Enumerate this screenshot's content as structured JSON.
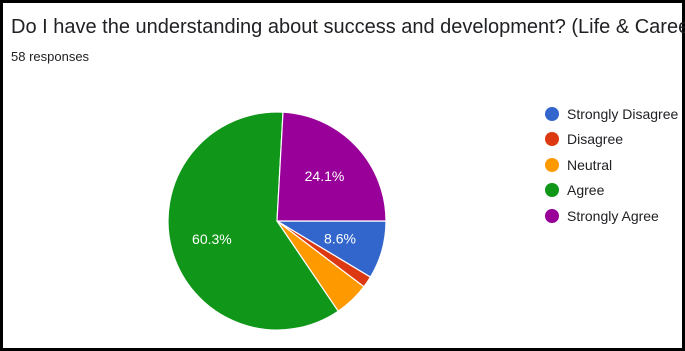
{
  "title": "Do I have the understanding about success and development? (Life & Career)",
  "responses": "58 responses",
  "chart_data": {
    "type": "pie",
    "title": "Do I have the understanding about success and development? (Life & Career)",
    "legend_position": "right",
    "start_angle_deg": 90,
    "slices": [
      {
        "label": "Strongly Disagree",
        "value": 8.6,
        "color": "#3366cc",
        "data_label": "8.6%"
      },
      {
        "label": "Disagree",
        "value": 1.7,
        "color": "#dc3912",
        "data_label": ""
      },
      {
        "label": "Neutral",
        "value": 5.2,
        "color": "#ff9900",
        "data_label": ""
      },
      {
        "label": "Agree",
        "value": 60.3,
        "color": "#109618",
        "data_label": "60.3%"
      },
      {
        "label": "Strongly Agree",
        "value": 24.1,
        "color": "#990099",
        "data_label": "24.1%"
      }
    ]
  }
}
